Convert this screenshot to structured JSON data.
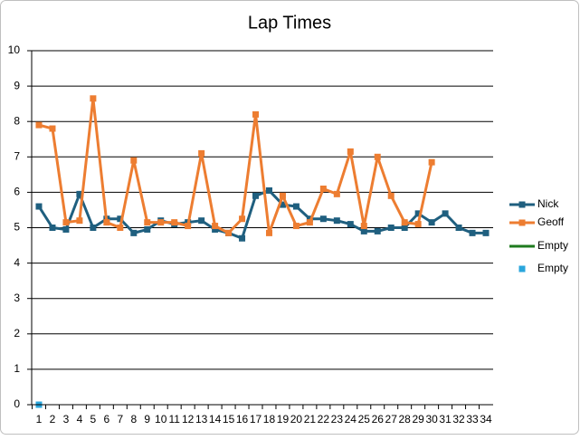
{
  "chart_data": {
    "type": "line",
    "title": "Lap Times",
    "categories": [
      "1",
      "2",
      "3",
      "4",
      "5",
      "6",
      "7",
      "8",
      "9",
      "10",
      "11",
      "12",
      "13",
      "14",
      "15",
      "16",
      "17",
      "18",
      "19",
      "20",
      "21",
      "22",
      "23",
      "24",
      "25",
      "26",
      "27",
      "28",
      "29",
      "30",
      "31",
      "32",
      "33",
      "34"
    ],
    "series": [
      {
        "name": "Nick",
        "color": "#1f5f7f",
        "line": true,
        "marker": true,
        "values": [
          5.6,
          5.0,
          4.95,
          5.95,
          5.0,
          5.25,
          5.25,
          4.85,
          4.95,
          5.2,
          5.1,
          5.15,
          5.2,
          4.95,
          4.85,
          4.7,
          5.9,
          6.05,
          5.65,
          5.6,
          5.25,
          5.25,
          5.2,
          5.1,
          4.9,
          4.9,
          5.0,
          5.0,
          5.4,
          5.15,
          5.4,
          5.0,
          4.85,
          4.85
        ]
      },
      {
        "name": "Geoff",
        "color": "#ed7d31",
        "line": true,
        "marker": true,
        "values": [
          7.9,
          7.8,
          5.15,
          5.2,
          8.65,
          5.15,
          5.0,
          6.9,
          5.15,
          5.15,
          5.15,
          5.05,
          7.1,
          5.05,
          4.85,
          5.25,
          8.2,
          4.85,
          5.9,
          5.05,
          5.15,
          6.1,
          5.95,
          7.15,
          5.05,
          7.0,
          5.9,
          5.15,
          5.1,
          6.85,
          null,
          null,
          null,
          null
        ]
      },
      {
        "name": "Empty",
        "color": "#1e7a1e",
        "line": true,
        "marker": false,
        "values": [
          null,
          null,
          null,
          null,
          null,
          null,
          null,
          null,
          null,
          null,
          null,
          null,
          null,
          null,
          null,
          null,
          null,
          null,
          null,
          null,
          null,
          null,
          null,
          null,
          null,
          null,
          null,
          null,
          null,
          null,
          null,
          null,
          null,
          null
        ]
      },
      {
        "name": "Empty",
        "color": "#2aa6dc",
        "line": false,
        "marker": true,
        "values": [
          0,
          null,
          null,
          null,
          null,
          null,
          null,
          null,
          null,
          null,
          null,
          null,
          null,
          null,
          null,
          null,
          null,
          null,
          null,
          null,
          null,
          null,
          null,
          null,
          null,
          null,
          null,
          null,
          null,
          null,
          null,
          null,
          null,
          null
        ]
      }
    ],
    "ylim": [
      0,
      10
    ],
    "yticks": [
      0,
      1,
      2,
      3,
      4,
      5,
      6,
      7,
      8,
      9,
      10
    ],
    "grid": true,
    "legend": "right"
  }
}
